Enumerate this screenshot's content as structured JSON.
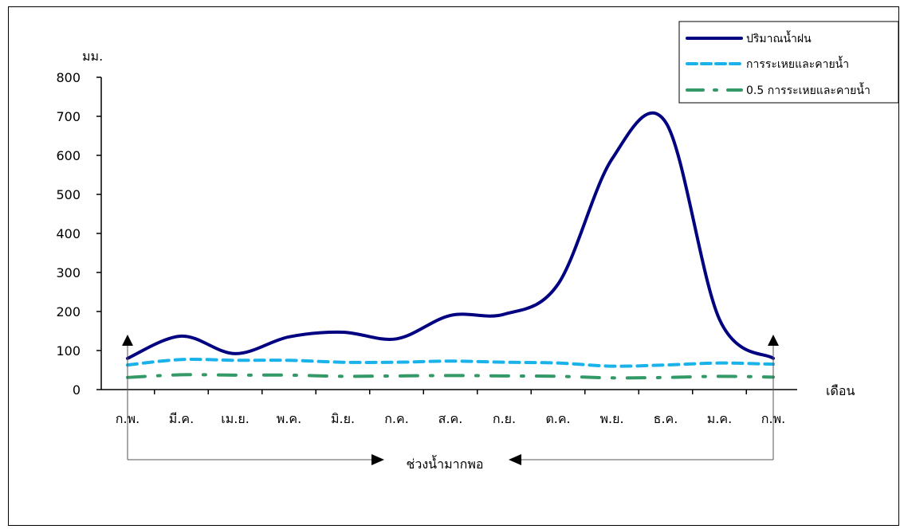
{
  "chart_data": {
    "type": "line",
    "title": "",
    "ylabel": "มม.",
    "xlabel": "เดือน",
    "ylim": [
      0,
      800
    ],
    "yticks": [
      0,
      100,
      200,
      300,
      400,
      500,
      600,
      700,
      800
    ],
    "categories": [
      "ก.พ.",
      "มี.ค.",
      "เม.ย.",
      "พ.ค.",
      "มิ.ย.",
      "ก.ค.",
      "ส.ค.",
      "ก.ย.",
      "ต.ค.",
      "พ.ย.",
      "ธ.ค.",
      "ม.ค.",
      "ก.พ."
    ],
    "series": [
      {
        "name": "ปริมาณน้ำฝน",
        "color": "#000080",
        "style": "solid",
        "values": [
          80,
          137,
          92,
          135,
          147,
          130,
          190,
          193,
          270,
          590,
          685,
          180,
          80
        ]
      },
      {
        "name": "การระเหยและคายน้ำ",
        "color": "#1ab2e8",
        "style": "dashed",
        "values": [
          63,
          77,
          75,
          75,
          70,
          70,
          73,
          70,
          68,
          60,
          63,
          68,
          65
        ]
      },
      {
        "name": "0.5 การระเหยและคายน้ำ",
        "color": "#339966",
        "style": "dashdot",
        "values": [
          31,
          38,
          37,
          37,
          34,
          35,
          36,
          35,
          34,
          30,
          31,
          34,
          32
        ]
      }
    ],
    "legend_position": "top-right",
    "grid": false,
    "annotation": "ช่วงน้ำมากพอ"
  }
}
